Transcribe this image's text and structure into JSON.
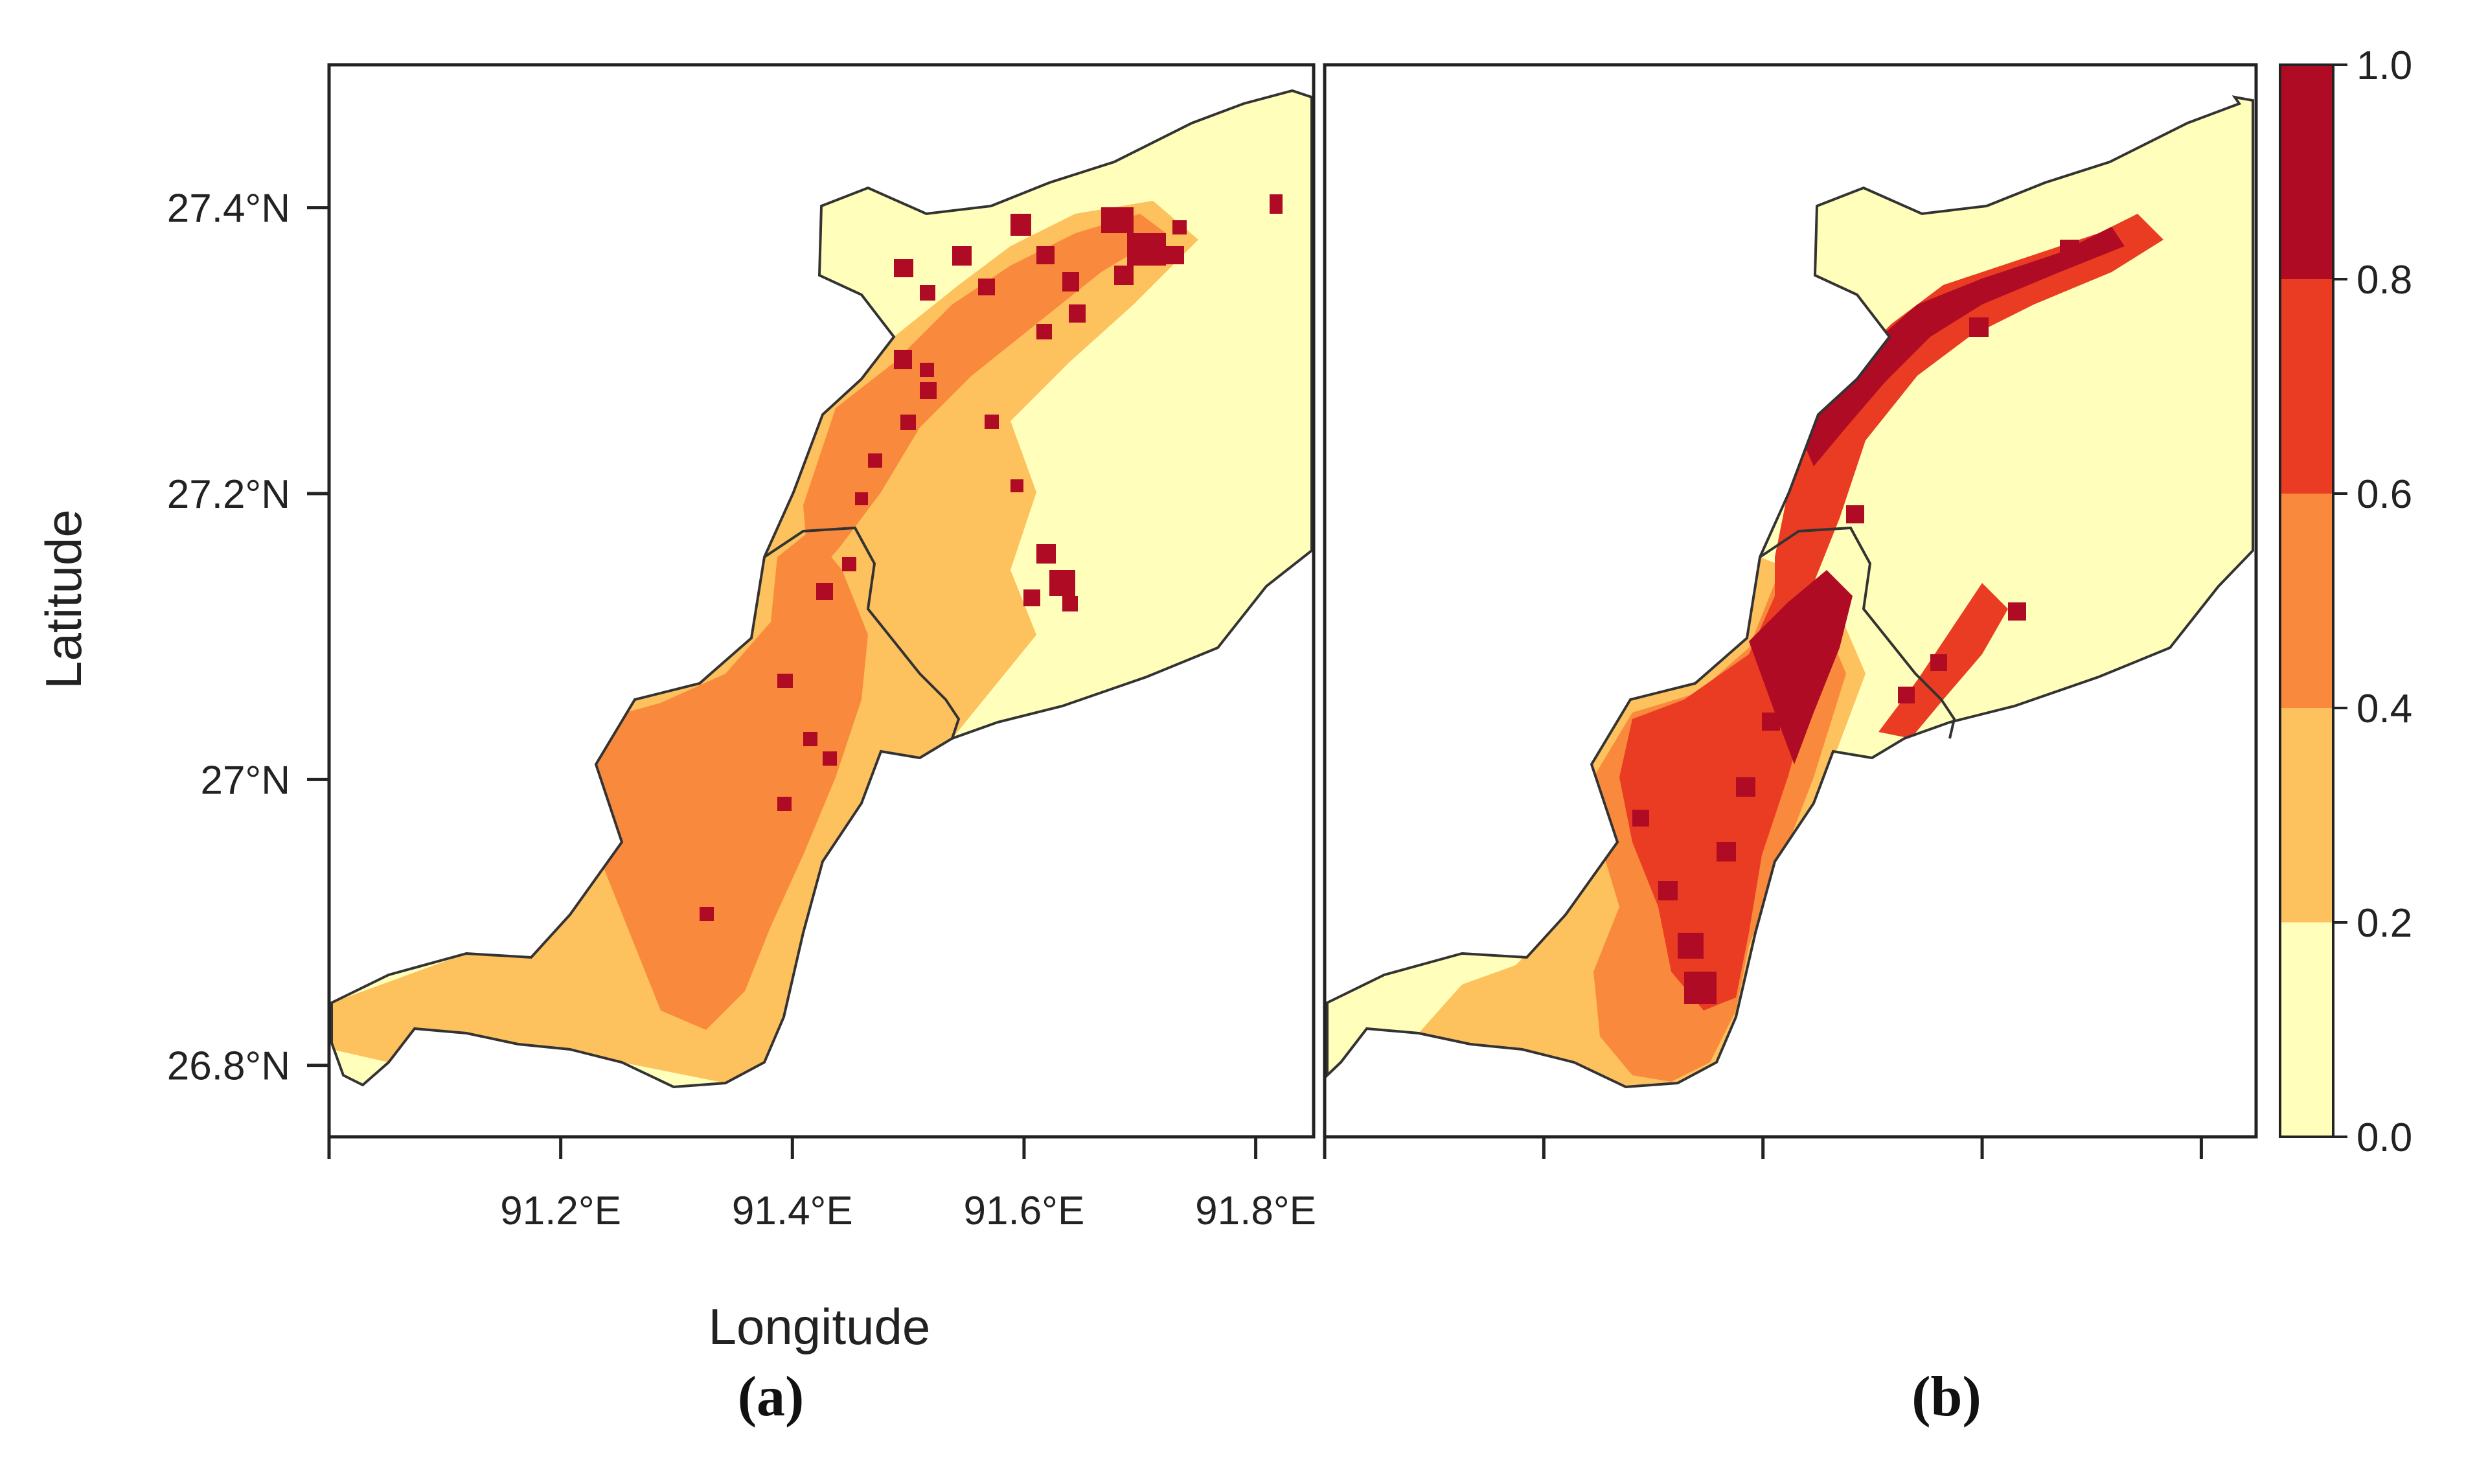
{
  "figure": {
    "panels": [
      {
        "label": "(a)"
      },
      {
        "label": "(b)"
      }
    ],
    "axes": {
      "xlabel": "Longitude",
      "ylabel": "Latitude",
      "x_ticks": [
        {
          "value": 91.2,
          "label": "91.2°E"
        },
        {
          "value": 91.4,
          "label": "91.4°E"
        },
        {
          "value": 91.6,
          "label": "91.6°E"
        },
        {
          "value": 91.8,
          "label": "91.8°E"
        }
      ],
      "y_ticks": [
        {
          "value": 26.8,
          "label": "26.8°N"
        },
        {
          "value": 27.0,
          "label": "27°N"
        },
        {
          "value": 27.2,
          "label": "27.2°N"
        },
        {
          "value": 27.4,
          "label": "27.4°N"
        }
      ],
      "xlim": [
        91.0,
        91.85
      ],
      "ylim": [
        26.75,
        27.5
      ]
    },
    "colorbar": {
      "range": [
        0.0,
        1.0
      ],
      "ticks": [
        "0.0",
        "0.2",
        "0.4",
        "0.6",
        "0.8",
        "1.0"
      ],
      "bins": [
        {
          "from": 0.0,
          "to": 0.2,
          "color": "#ffffbb"
        },
        {
          "from": 0.2,
          "to": 0.4,
          "color": "#fdc15e"
        },
        {
          "from": 0.4,
          "to": 0.6,
          "color": "#f98a3d"
        },
        {
          "from": 0.6,
          "to": 0.8,
          "color": "#ea3c23"
        },
        {
          "from": 0.8,
          "to": 1.0,
          "color": "#b00b25"
        }
      ]
    }
  }
}
